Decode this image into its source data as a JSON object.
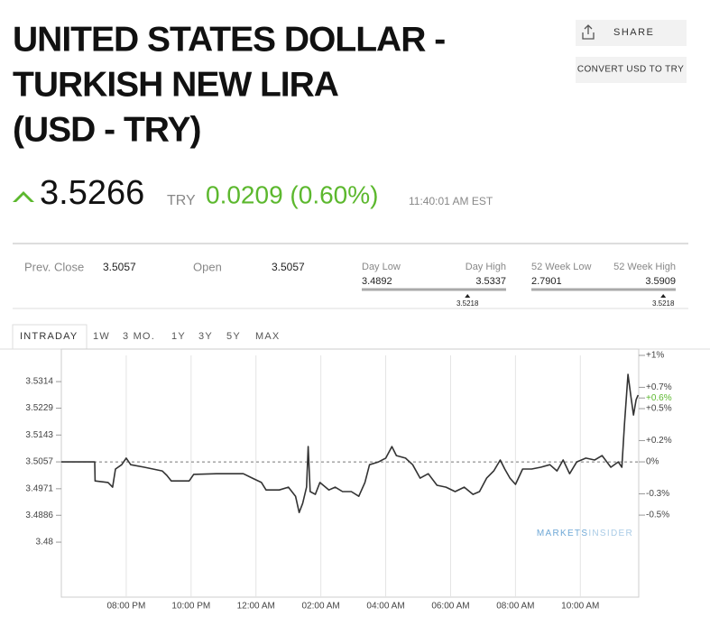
{
  "header": {
    "title_lines": [
      "UNITED STATES DOLLAR -",
      "TURKISH NEW LIRA",
      "(USD - TRY)"
    ],
    "actions": [
      "SHARE",
      "CONVERT USD TO TRY"
    ]
  },
  "quote": {
    "price": 3.5266,
    "currency": "TRY",
    "change": "0.0209 (0.60%)",
    "time": "11:40:01 AM EST",
    "color": "#5cb82e"
  },
  "stats": {
    "prev_close": {
      "label": "Prev. Close",
      "value": 3.5057
    },
    "open": {
      "label": "Open",
      "value": 3.5057
    },
    "day_range": {
      "low_label": "Day Low",
      "high_label": "Day High",
      "low": 3.4892,
      "high": 3.5337,
      "current": 3.5218
    },
    "week52_range": {
      "low_label": "52 Week Low",
      "high_label": "52 Week High",
      "low": 2.7901,
      "high": 3.5909,
      "current": 3.5218
    }
  },
  "tabs": [
    "INTRADAY",
    "1W",
    "3 MO.",
    "1Y",
    "3Y",
    "5Y",
    "MAX"
  ],
  "chart_data": {
    "type": "line",
    "x": [
      18,
      19.03,
      19.04,
      19.44,
      19.58,
      19.67,
      19.86,
      20,
      20.14,
      20.56,
      21.11,
      21.25,
      21.39,
      21.94,
      22.08,
      22.78,
      23.61,
      23.89,
      24.17,
      24.31,
      24.72,
      25,
      25.22,
      25.33,
      25.44,
      25.56,
      25.61,
      25.67,
      25.83,
      25.97,
      26.25,
      26.44,
      26.67,
      26.94,
      27.17,
      27.36,
      27.5,
      27.78,
      28,
      28.19,
      28.33,
      28.61,
      28.83,
      29.06,
      29.31,
      29.58,
      29.86,
      30.14,
      30.42,
      30.69,
      30.89,
      31.11,
      31.33,
      31.53,
      31.67,
      31.83,
      32,
      32.22,
      32.5,
      32.78,
      33.06,
      33.28,
      33.47,
      33.67,
      33.89,
      34.17,
      34.44,
      34.67,
      34.94,
      35.17,
      35.28,
      35.36,
      35.47,
      35.56,
      35.64,
      35.72,
      35.78
    ],
    "series": [
      {
        "color": "#333333",
        "values": [
          3.5057,
          3.5057,
          3.4996,
          3.4991,
          3.4976,
          3.5034,
          3.5048,
          3.5069,
          3.5048,
          3.504,
          3.5028,
          3.5014,
          3.4996,
          3.4996,
          3.5017,
          3.5019,
          3.5019,
          3.5005,
          3.4991,
          3.4967,
          3.4967,
          3.4976,
          3.4947,
          3.4895,
          3.4924,
          3.4976,
          3.5106,
          3.4962,
          3.4953,
          3.4991,
          3.4967,
          3.4976,
          3.4962,
          3.4962,
          3.4947,
          3.4991,
          3.5048,
          3.5057,
          3.5069,
          3.5106,
          3.5077,
          3.5069,
          3.5048,
          3.5005,
          3.5019,
          3.4982,
          3.4976,
          3.4962,
          3.4976,
          3.4953,
          3.4962,
          3.5005,
          3.5028,
          3.5063,
          3.5034,
          3.5005,
          3.4985,
          3.5034,
          3.5034,
          3.504,
          3.5048,
          3.5028,
          3.5063,
          3.5019,
          3.5057,
          3.5069,
          3.5063,
          3.5077,
          3.504,
          3.5057,
          3.504,
          3.5178,
          3.5337,
          3.5265,
          3.5207,
          3.5256,
          3.5271
        ]
      }
    ],
    "xlim": [
      18,
      35.8
    ],
    "xticks": [
      {
        "value": 20,
        "label": "08:00 PM"
      },
      {
        "value": 22,
        "label": "10:00 PM"
      },
      {
        "value": 24,
        "label": "12:00 AM"
      },
      {
        "value": 26,
        "label": "02:00 AM"
      },
      {
        "value": 28,
        "label": "04:00 AM"
      },
      {
        "value": 30,
        "label": "06:00 AM"
      },
      {
        "value": 32,
        "label": "08:00 AM"
      },
      {
        "value": 34,
        "label": "10:00 AM"
      }
    ],
    "ylim": [
      3.4624,
      3.5398
    ],
    "yticks": [
      3.5314,
      3.5229,
      3.5143,
      3.5057,
      3.4971,
      3.4886,
      3.48
    ],
    "y2lim": [
      -1.27,
      1.0
    ],
    "y2ticks": [
      {
        "value": 1,
        "label": "+1%"
      },
      {
        "value": 0.7,
        "label": "+0.7%"
      },
      {
        "value": 0.6,
        "label": "+0.6%",
        "color": "#5cb82e"
      },
      {
        "value": 0.5,
        "label": "+0.5%"
      },
      {
        "value": 0.2,
        "label": "+0.2%"
      },
      {
        "value": 0,
        "label": "0%"
      },
      {
        "value": -0.3,
        "label": "-0.3%"
      },
      {
        "value": -0.5,
        "label": "-0.5%"
      }
    ],
    "grid": true,
    "watermark": [
      "MARKETS",
      "INSIDER"
    ]
  }
}
